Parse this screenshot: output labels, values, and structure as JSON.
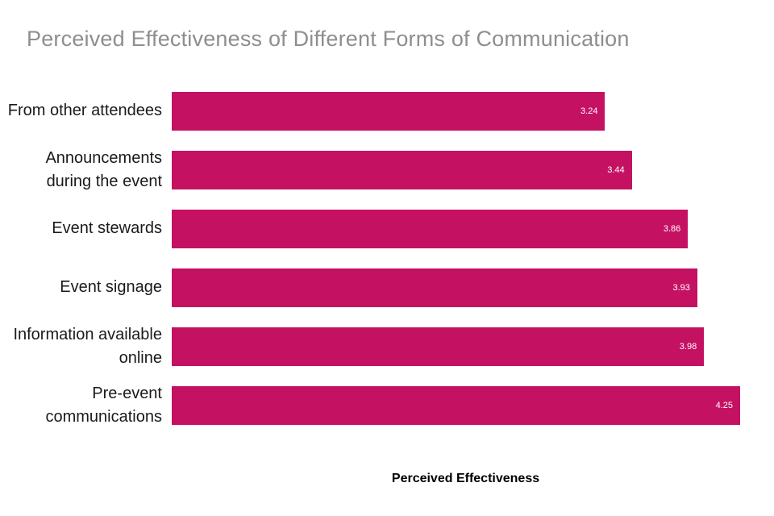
{
  "chart_data": {
    "type": "bar",
    "orientation": "horizontal",
    "title": "Perceived Effectiveness of Different Forms of Communication",
    "xlabel": "Perceived Effectiveness",
    "ylabel": "",
    "xlim": [
      0,
      4.25
    ],
    "grid": false,
    "legend": false,
    "bar_color": "#c51162",
    "value_label_color": "#ffffff",
    "title_color": "#8e8e8e",
    "categories": [
      "From other attendees",
      "Announcements during the event",
      "Event stewards",
      "Event signage",
      "Information available online",
      "Pre-event communications"
    ],
    "values": [
      3.24,
      3.44,
      3.86,
      3.93,
      3.98,
      4.25
    ],
    "value_labels": [
      "3.24",
      "3.44",
      "3.86",
      "3.93",
      "3.98",
      "4.25"
    ]
  }
}
